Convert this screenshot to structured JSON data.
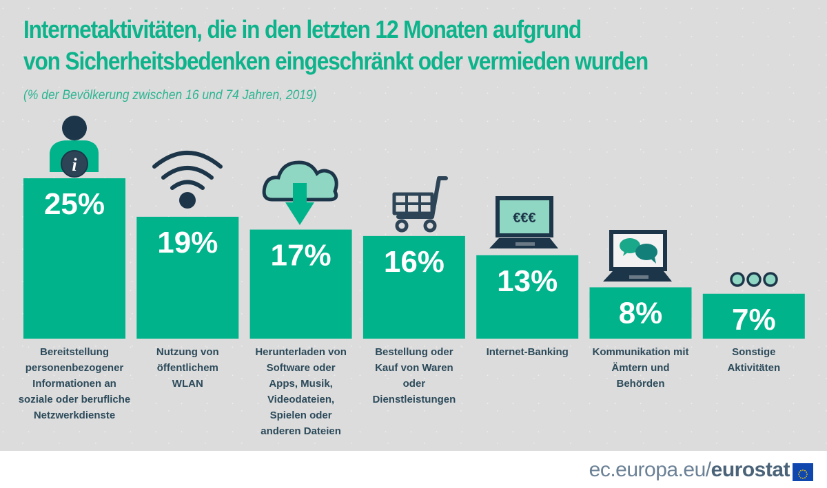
{
  "chart_data": {
    "type": "bar",
    "title": "Internetaktivitäten, die in den letzten 12 Monaten aufgrund von Sicherheitsbedenken eingeschränkt oder vermieden wurden",
    "title_lines": [
      "Internetaktivitäten, die in den letzten 12 Monaten aufgrund",
      "von Sicherheitsbedenken eingeschränkt oder vermieden wurden"
    ],
    "subtitle": "(% der Bevölkerung zwischen 16 und 74 Jahren, 2019)",
    "xlabel": "",
    "ylabel": "",
    "ylim": [
      0,
      25
    ],
    "grid": false,
    "legend": "none",
    "unit": "%",
    "categories": [
      "Bereitstellung personenbezogener Informationen an soziale oder berufliche Netzwerkdienste",
      "Nutzung von öffentlichem WLAN",
      "Herunterladen von Software oder Apps, Musik, Videodateien, Spielen oder anderen Dateien",
      "Bestellung oder Kauf von Waren oder Dienstleistungen",
      "Internet-Banking",
      "Kommunikation mit Ämtern und Behörden",
      "Sonstige Aktivitäten"
    ],
    "category_lines": [
      [
        "Bereitstellung",
        "personenbezogener",
        "Informationen an",
        "soziale oder berufliche",
        "Netzwerkdienste"
      ],
      [
        "Nutzung von",
        "öffentlichem",
        "WLAN"
      ],
      [
        "Herunterladen von",
        "Software oder",
        "Apps, Musik,",
        "Videodateien,",
        "Spielen oder",
        "anderen Dateien"
      ],
      [
        "Bestellung oder",
        "Kauf von Waren",
        "oder",
        "Dienstleistungen"
      ],
      [
        "Internet-Banking"
      ],
      [
        "Kommunikation mit",
        "Ämtern und",
        "Behörden"
      ],
      [
        "Sonstige",
        "Aktivitäten"
      ]
    ],
    "values": [
      25,
      19,
      17,
      16,
      13,
      8,
      7
    ],
    "data_labels": [
      "25%",
      "19%",
      "17%",
      "16%",
      "13%",
      "8%",
      "7%"
    ],
    "icons": [
      "person-info-icon",
      "wifi-icon",
      "cloud-download-icon",
      "shopping-cart-icon",
      "laptop-euro-icon",
      "laptop-chat-icon",
      "three-dots-icon"
    ]
  },
  "colors": {
    "bar": "#00b38b",
    "title": "#0db38b",
    "label_text": "#2c4a5a",
    "icon_dark": "#1c3548",
    "icon_light": "#8fd6c3",
    "background": "#dcdcdc"
  },
  "footer": {
    "site_prefix": "ec.europa.eu/",
    "site_brand": "eurostat",
    "flag": "eu-flag-icon"
  }
}
